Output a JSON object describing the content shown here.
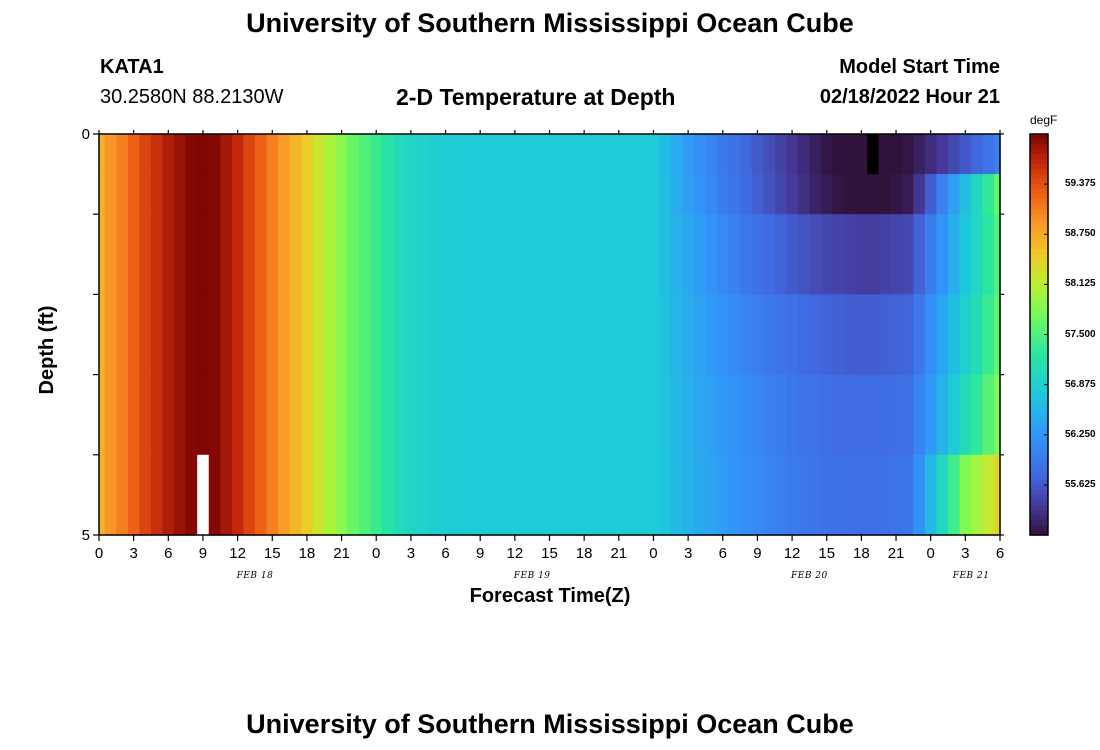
{
  "page": {
    "title_top": "University of Southern Mississippi Ocean Cube",
    "title_bottom": "University of Southern Mississippi Ocean Cube",
    "station_id": "KATA1",
    "station_coords": "30.2580N  88.2130W",
    "plot_title": "2-D Temperature at Depth",
    "model_start_label": "Model Start Time",
    "model_start_value": "02/18/2022 Hour 21"
  },
  "chart_data": {
    "type": "heatmap",
    "title": "2-D Temperature at Depth",
    "xlabel": "Forecast Time(Z)",
    "ylabel": "Depth (ft)",
    "units": "degF",
    "x_tick_labels": [
      "0",
      "3",
      "6",
      "9",
      "12",
      "15",
      "18",
      "21",
      "0",
      "3",
      "6",
      "9",
      "12",
      "15",
      "18",
      "21",
      "0",
      "3",
      "6",
      "9",
      "12",
      "15",
      "18",
      "21",
      "0",
      "3",
      "6"
    ],
    "x_date_labels": [
      "FEB 18",
      "FEB 19",
      "FEB 20",
      "FEB 21"
    ],
    "y_tick_labels": [
      "0",
      "5"
    ],
    "ylim": [
      0,
      5
    ],
    "y_inverted": true,
    "colorbar_ticks": [
      "59.375",
      "58.750",
      "58.125",
      "57.500",
      "56.875",
      "56.250",
      "55.625"
    ],
    "colorbar_range": [
      55.0,
      60.0
    ],
    "hours": [
      0,
      1,
      2,
      3,
      4,
      5,
      6,
      7,
      8,
      9,
      10,
      11,
      12,
      13,
      14,
      15,
      16,
      17,
      18,
      19,
      20,
      21,
      22,
      23,
      24,
      25,
      26,
      27,
      28,
      29,
      30,
      31,
      32,
      33,
      34,
      35,
      36,
      37,
      38,
      39,
      40,
      41,
      42,
      43,
      44,
      45,
      46,
      47,
      48,
      49,
      50,
      51,
      52,
      53,
      54,
      55,
      56,
      57,
      58,
      59,
      60,
      61,
      62,
      63,
      64,
      65,
      66,
      67,
      68,
      69,
      70,
      71,
      72,
      73,
      74,
      75,
      76,
      77,
      78
    ],
    "depth_levels_ft": [
      0.0,
      0.5,
      1.5,
      2.5,
      3.5,
      4.5
    ],
    "values": [
      [
        58.7,
        58.9,
        59.05,
        59.25,
        59.45,
        59.6,
        59.75,
        59.85,
        59.95,
        59.98,
        59.95,
        59.8,
        59.65,
        59.45,
        59.25,
        59.05,
        58.85,
        58.65,
        58.45,
        58.25,
        58.05,
        57.85,
        57.65,
        57.5,
        57.35,
        57.2,
        57.05,
        56.95,
        56.9,
        56.85,
        56.82,
        56.8,
        56.8,
        56.8,
        56.8,
        56.8,
        56.8,
        56.8,
        56.8,
        56.8,
        56.8,
        56.8,
        56.8,
        56.8,
        56.8,
        56.8,
        56.8,
        56.8,
        56.8,
        56.62,
        56.47,
        56.32,
        56.18,
        56.06,
        55.94,
        55.84,
        55.74,
        55.64,
        55.54,
        55.44,
        55.34,
        55.24,
        55.14,
        55.04,
        54.97,
        54.9,
        54.84,
        null,
        54.9,
        54.97,
        55.04,
        55.14,
        55.25,
        55.37,
        55.49,
        55.62,
        55.74,
        55.87,
        56.0
      ],
      [
        58.7,
        58.9,
        59.05,
        59.25,
        59.45,
        59.6,
        59.75,
        59.85,
        59.95,
        59.98,
        59.95,
        59.8,
        59.65,
        59.45,
        59.25,
        59.05,
        58.85,
        58.65,
        58.45,
        58.25,
        58.05,
        57.85,
        57.65,
        57.5,
        57.35,
        57.2,
        57.05,
        56.95,
        56.9,
        56.85,
        56.82,
        56.8,
        56.8,
        56.8,
        56.8,
        56.8,
        56.8,
        56.8,
        56.8,
        56.8,
        56.8,
        56.8,
        56.8,
        56.8,
        56.8,
        56.8,
        56.8,
        56.8,
        56.8,
        56.64,
        56.49,
        56.34,
        56.22,
        56.1,
        55.98,
        55.88,
        55.78,
        55.68,
        55.58,
        55.48,
        55.38,
        55.28,
        55.18,
        55.1,
        55.04,
        54.99,
        54.95,
        54.94,
        54.99,
        55.04,
        55.09,
        55.34,
        55.67,
        56.0,
        56.33,
        56.66,
        56.99,
        57.32,
        57.65
      ],
      [
        58.7,
        58.9,
        59.05,
        59.25,
        59.45,
        59.6,
        59.75,
        59.85,
        59.95,
        59.98,
        59.95,
        59.8,
        59.65,
        59.45,
        59.25,
        59.05,
        58.85,
        58.65,
        58.45,
        58.25,
        58.05,
        57.85,
        57.65,
        57.5,
        57.35,
        57.2,
        57.05,
        56.95,
        56.9,
        56.85,
        56.82,
        56.8,
        56.8,
        56.8,
        56.8,
        56.8,
        56.8,
        56.8,
        56.8,
        56.8,
        56.8,
        56.8,
        56.8,
        56.8,
        56.8,
        56.8,
        56.8,
        56.8,
        56.8,
        56.66,
        56.53,
        56.42,
        56.32,
        56.22,
        56.12,
        56.02,
        55.92,
        55.84,
        55.77,
        55.7,
        55.64,
        55.58,
        55.52,
        55.48,
        55.45,
        55.42,
        55.4,
        55.4,
        55.43,
        55.46,
        55.49,
        55.7,
        55.96,
        56.22,
        56.48,
        56.74,
        57.0,
        57.26,
        57.52
      ],
      [
        58.7,
        58.9,
        59.05,
        59.25,
        59.45,
        59.6,
        59.75,
        59.85,
        59.95,
        59.98,
        59.95,
        59.8,
        59.65,
        59.45,
        59.25,
        59.05,
        58.85,
        58.65,
        58.45,
        58.25,
        58.05,
        57.85,
        57.65,
        57.5,
        57.35,
        57.2,
        57.05,
        56.95,
        56.9,
        56.85,
        56.82,
        56.8,
        56.8,
        56.8,
        56.8,
        56.8,
        56.8,
        56.8,
        56.8,
        56.8,
        56.8,
        56.8,
        56.8,
        56.8,
        56.8,
        56.8,
        56.8,
        56.8,
        56.8,
        56.68,
        56.56,
        56.46,
        56.38,
        56.3,
        56.22,
        56.14,
        56.06,
        55.99,
        55.93,
        55.88,
        55.83,
        55.78,
        55.74,
        55.71,
        55.69,
        55.67,
        55.66,
        55.66,
        55.68,
        55.7,
        55.72,
        55.92,
        56.16,
        56.4,
        56.64,
        56.88,
        57.12,
        57.36,
        57.6
      ],
      [
        58.7,
        58.9,
        59.05,
        59.25,
        59.45,
        59.6,
        59.75,
        59.85,
        59.95,
        59.98,
        59.95,
        59.8,
        59.65,
        59.45,
        59.25,
        59.05,
        58.85,
        58.65,
        58.45,
        58.25,
        58.05,
        57.85,
        57.65,
        57.5,
        57.35,
        57.2,
        57.05,
        56.95,
        56.9,
        56.85,
        56.82,
        56.8,
        56.8,
        56.8,
        56.8,
        56.8,
        56.8,
        56.8,
        56.8,
        56.8,
        56.8,
        56.8,
        56.8,
        56.8,
        56.8,
        56.8,
        56.8,
        56.8,
        56.8,
        56.7,
        56.6,
        56.5,
        56.42,
        56.35,
        56.28,
        56.21,
        56.14,
        56.08,
        56.02,
        55.97,
        55.92,
        55.88,
        55.85,
        55.82,
        55.8,
        55.79,
        55.78,
        55.78,
        55.8,
        55.82,
        55.84,
        56.05,
        56.3,
        56.55,
        56.8,
        57.05,
        57.3,
        57.55,
        57.8
      ],
      [
        58.7,
        58.9,
        59.05,
        59.25,
        59.45,
        59.6,
        59.75,
        59.85,
        59.95,
        null,
        59.95,
        59.8,
        59.65,
        59.45,
        59.25,
        59.05,
        58.85,
        58.65,
        58.45,
        58.25,
        58.05,
        57.85,
        57.65,
        57.5,
        57.35,
        57.2,
        57.05,
        56.95,
        56.9,
        56.85,
        56.82,
        56.8,
        56.8,
        56.8,
        56.8,
        56.8,
        56.8,
        56.8,
        56.8,
        56.8,
        56.8,
        56.8,
        56.8,
        56.8,
        56.8,
        56.8,
        56.8,
        56.8,
        56.8,
        56.72,
        56.62,
        56.52,
        56.45,
        56.38,
        56.31,
        56.24,
        56.18,
        56.12,
        56.06,
        56.01,
        55.96,
        55.92,
        55.89,
        55.86,
        55.84,
        55.83,
        55.82,
        55.82,
        55.85,
        55.88,
        55.91,
        56.2,
        56.6,
        57.0,
        57.4,
        57.8,
        58.0,
        58.2,
        58.4
      ]
    ]
  }
}
